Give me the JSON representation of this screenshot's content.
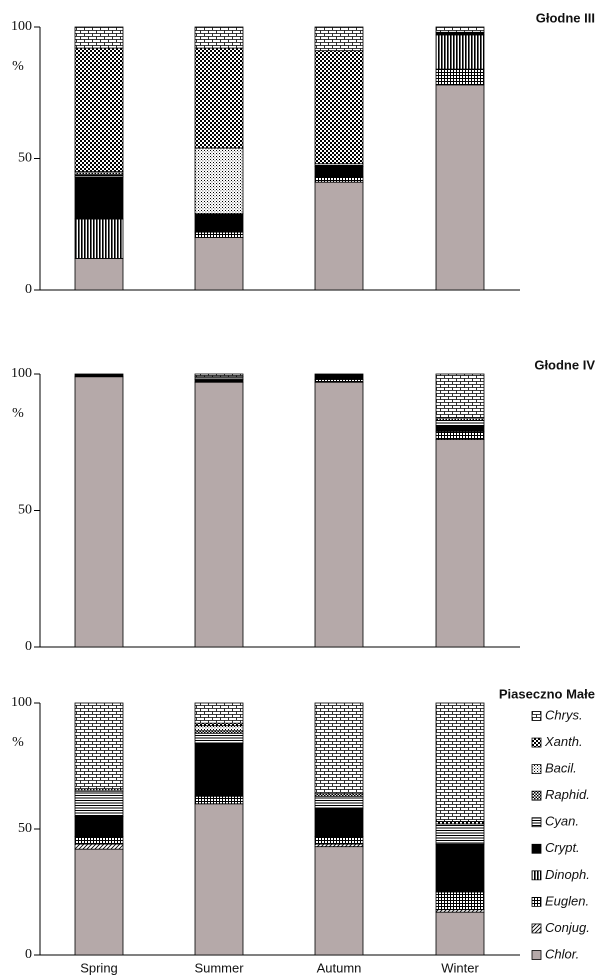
{
  "chart_data": [
    {
      "type": "bar",
      "stacked": true,
      "title": "Głodne III",
      "y_label": "%",
      "categories": [
        null,
        null,
        null,
        null
      ],
      "ylim": [
        0,
        100
      ],
      "yticks": [
        0,
        50,
        100
      ],
      "series": [
        {
          "color": "#b5a9a9",
          "pattern": "plain",
          "values": [
            12,
            20,
            41,
            78
          ]
        },
        {
          "color": "#000000",
          "pattern": "diagonal",
          "values": [
            0,
            0,
            0,
            0
          ]
        },
        {
          "color": "#000000",
          "pattern": "grid",
          "values": [
            0,
            2,
            2,
            6
          ]
        },
        {
          "color": "#000000",
          "pattern": "vertical",
          "values": [
            15,
            0,
            0,
            13
          ]
        },
        {
          "color": "#000000",
          "pattern": "solid",
          "values": [
            16,
            7,
            4,
            1
          ]
        },
        {
          "color": "#000000",
          "pattern": "hlines",
          "values": [
            1,
            0,
            1,
            0
          ]
        },
        {
          "color": "#000000",
          "pattern": "finechecker",
          "values": [
            1,
            0,
            0,
            0
          ]
        },
        {
          "color": "#000000",
          "pattern": "dots",
          "values": [
            0,
            25,
            0,
            0
          ]
        },
        {
          "color": "#000000",
          "pattern": "checker",
          "values": [
            47,
            38,
            43,
            0
          ]
        },
        {
          "color": "#000000",
          "pattern": "bricks",
          "values": [
            8,
            8,
            9,
            2
          ]
        }
      ]
    },
    {
      "type": "bar",
      "stacked": true,
      "title": "Głodne IV",
      "y_label": "%",
      "categories": [
        null,
        null,
        null,
        null
      ],
      "ylim": [
        0,
        100
      ],
      "yticks": [
        0,
        50,
        100
      ],
      "series": [
        {
          "color": "#b5a9a9",
          "pattern": "plain",
          "values": [
            99,
            97,
            97,
            76
          ]
        },
        {
          "color": "#000000",
          "pattern": "diagonal",
          "values": [
            0,
            0,
            0,
            0
          ]
        },
        {
          "color": "#000000",
          "pattern": "grid",
          "values": [
            0,
            0,
            1,
            3
          ]
        },
        {
          "color": "#000000",
          "pattern": "vertical",
          "values": [
            0,
            0,
            0,
            0
          ]
        },
        {
          "color": "#000000",
          "pattern": "solid",
          "values": [
            1,
            1,
            2,
            2
          ]
        },
        {
          "color": "#000000",
          "pattern": "hlines",
          "values": [
            0,
            1,
            0,
            2
          ]
        },
        {
          "color": "#000000",
          "pattern": "finechecker",
          "values": [
            0,
            0,
            0,
            1
          ]
        },
        {
          "color": "#000000",
          "pattern": "dots",
          "values": [
            0,
            0,
            0,
            0
          ]
        },
        {
          "color": "#000000",
          "pattern": "checker",
          "values": [
            0,
            0,
            0,
            0
          ]
        },
        {
          "color": "#000000",
          "pattern": "bricks",
          "values": [
            0,
            1,
            0,
            16
          ]
        }
      ]
    },
    {
      "type": "bar",
      "stacked": true,
      "title": "Piaseczno Małe",
      "y_label": "%",
      "categories": [
        "Spring",
        "Summer",
        "Autumn",
        "Winter"
      ],
      "ylim": [
        0,
        100
      ],
      "yticks": [
        0,
        50,
        100
      ],
      "legend": "right",
      "series": [
        {
          "name": "Chlor.",
          "color": "#b5a9a9",
          "pattern": "plain",
          "values": [
            42,
            60,
            43,
            17
          ]
        },
        {
          "name": "Conjug.",
          "color": "#000000",
          "pattern": "diagonal",
          "values": [
            2,
            0,
            1,
            1
          ]
        },
        {
          "name": "Euglen.",
          "color": "#000000",
          "pattern": "grid",
          "values": [
            3,
            3,
            3,
            7
          ]
        },
        {
          "name": "Dinoph.",
          "color": "#000000",
          "pattern": "vertical",
          "values": [
            0,
            0,
            0,
            0
          ]
        },
        {
          "name": "Crypt.",
          "color": "#000000",
          "pattern": "solid",
          "values": [
            8,
            21,
            11,
            19
          ]
        },
        {
          "name": "Cyan.",
          "color": "#000000",
          "pattern": "hlines",
          "values": [
            10,
            4,
            5,
            8
          ]
        },
        {
          "name": "Raphid.",
          "color": "#000000",
          "pattern": "finechecker",
          "values": [
            1,
            1,
            1,
            0
          ]
        },
        {
          "name": "Bacil.",
          "color": "#000000",
          "pattern": "dots",
          "values": [
            0,
            2,
            0,
            0
          ]
        },
        {
          "name": "Xanth.",
          "color": "#000000",
          "pattern": "checker",
          "values": [
            0,
            1,
            0,
            1
          ]
        },
        {
          "name": "Chrys.",
          "color": "#000000",
          "pattern": "bricks",
          "values": [
            34,
            8,
            36,
            47
          ]
        }
      ]
    }
  ]
}
